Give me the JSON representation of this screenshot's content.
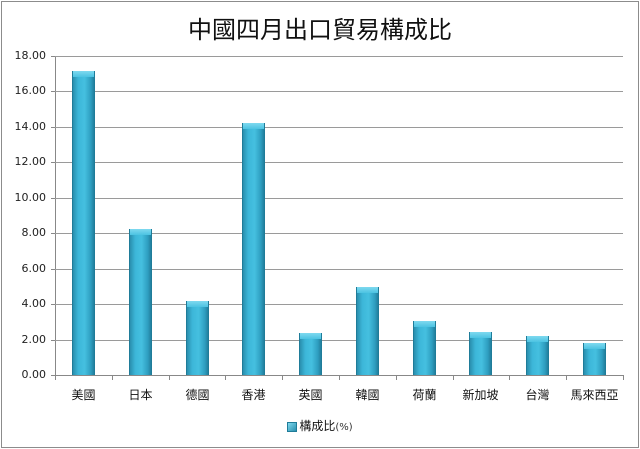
{
  "chart_data": {
    "type": "bar",
    "title": "中國四月出口貿易構成比",
    "xlabel": "",
    "ylabel": "",
    "categories": [
      "美國",
      "日本",
      "德國",
      "香港",
      "英國",
      "韓國",
      "荷蘭",
      "新加坡",
      "台灣",
      "馬來西亞"
    ],
    "series": [
      {
        "name": "構成比(%)",
        "values": [
          17.15,
          8.24,
          4.2,
          14.22,
          2.37,
          4.97,
          3.03,
          2.42,
          2.18,
          1.78
        ]
      }
    ],
    "ylim": [
      0,
      18
    ],
    "yticks": [
      "0.00",
      "2.00",
      "4.00",
      "6.00",
      "8.00",
      "10.00",
      "12.00",
      "14.00",
      "16.00",
      "18.00"
    ],
    "grid": true,
    "legend_position": "bottom",
    "bar_color": "#3cb6d8"
  },
  "legend": {
    "label": "構成比",
    "unit": "(%)"
  }
}
